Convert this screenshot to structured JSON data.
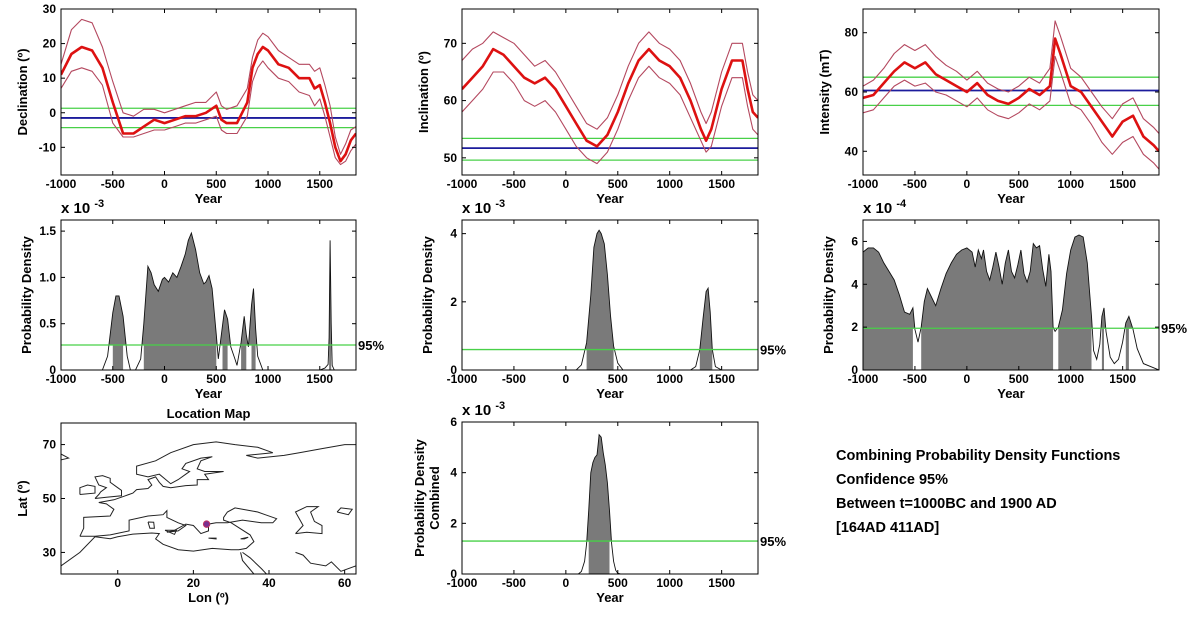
{
  "colors": {
    "mean_curve": "#dd1111",
    "error_envelope": "#b4485f",
    "reference_value": "#1c1c9c",
    "reference_bounds": "#48d048",
    "density_fill": "#7a7a7a",
    "location_marker": "#7a2f8f"
  },
  "summary": {
    "line1": "Combining Probability Density Functions",
    "line2": "Confidence 95%",
    "line3": "Between t=1000BC and 1900 AD",
    "line4": "[164AD 411AD]"
  },
  "chart_data": [
    {
      "type": "line",
      "panel": "declination-curve",
      "xlabel": "Year",
      "ylabel": "Declination (º)",
      "xlim": [
        -1000,
        1850
      ],
      "ylim": [
        -18,
        30
      ],
      "xticks": [
        -1000,
        -500,
        0,
        500,
        1000,
        1500
      ],
      "yticks": [
        -10,
        0,
        10,
        20,
        30
      ],
      "grid": false,
      "reference_line": -1.5,
      "reference_bounds": [
        -4.3,
        1.3
      ],
      "x": [
        -1000,
        -900,
        -800,
        -700,
        -600,
        -500,
        -400,
        -300,
        -200,
        -100,
        0,
        100,
        200,
        300,
        400,
        500,
        550,
        600,
        700,
        800,
        850,
        900,
        950,
        1000,
        1100,
        1200,
        1300,
        1400,
        1450,
        1500,
        1550,
        1600,
        1650,
        1700,
        1750,
        1800,
        1850
      ],
      "series": [
        {
          "role": "mean",
          "values": [
            11,
            17,
            19,
            18,
            13,
            3,
            -6,
            -6,
            -4,
            -2,
            -3,
            -2,
            -1,
            -1,
            0,
            2,
            -2,
            -3,
            -3,
            3,
            13,
            17,
            19,
            18,
            14,
            13,
            10,
            10,
            7,
            8,
            3,
            -3,
            -10,
            -14,
            -12,
            -8,
            -6
          ]
        },
        {
          "role": "upper",
          "values": [
            14,
            24,
            27,
            26,
            19,
            9,
            0,
            -1,
            1,
            1,
            0,
            1,
            2,
            3,
            3,
            6,
            2,
            1,
            2,
            7,
            16,
            21,
            23,
            22,
            18,
            16,
            14,
            14,
            12,
            13,
            8,
            2,
            -7,
            -12,
            -9,
            -5,
            -4
          ]
        },
        {
          "role": "lower",
          "values": [
            7,
            12,
            13,
            12,
            8,
            -3,
            -7,
            -7,
            -6,
            -5,
            -5,
            -4,
            -3,
            -3,
            -2,
            -1,
            -5,
            -6,
            -6,
            -1,
            9,
            13,
            15,
            13,
            10,
            9,
            6,
            5,
            2,
            4,
            -1,
            -7,
            -13,
            -15,
            -14,
            -11,
            -9
          ]
        }
      ]
    },
    {
      "type": "line",
      "panel": "inclination-curve",
      "xlabel": "Year",
      "ylabel": "Inclination (º)",
      "xlim": [
        -1000,
        1850
      ],
      "ylim": [
        47,
        76
      ],
      "xticks": [
        -1000,
        -500,
        0,
        500,
        1000,
        1500
      ],
      "yticks": [
        50,
        60,
        70
      ],
      "grid": false,
      "reference_line": 51.7,
      "reference_bounds": [
        49.6,
        53.4
      ],
      "x": [
        -1000,
        -900,
        -800,
        -700,
        -600,
        -500,
        -400,
        -300,
        -200,
        -100,
        0,
        100,
        200,
        300,
        400,
        500,
        600,
        700,
        800,
        900,
        1000,
        1100,
        1200,
        1300,
        1350,
        1400,
        1500,
        1600,
        1700,
        1750,
        1800,
        1850
      ],
      "series": [
        {
          "role": "mean",
          "values": [
            62,
            64,
            66,
            69,
            68,
            66,
            64,
            63,
            64,
            62,
            59,
            56,
            53,
            52,
            54,
            58,
            63,
            67,
            69,
            67,
            66,
            64,
            60,
            55,
            53,
            55,
            62,
            67,
            67,
            62,
            58,
            57
          ]
        },
        {
          "role": "upper",
          "values": [
            67,
            69,
            70,
            72,
            71,
            70,
            68,
            66,
            67,
            65,
            62,
            59,
            56,
            55,
            57,
            61,
            66,
            70,
            72,
            70,
            69,
            67,
            63,
            58,
            56,
            58,
            65,
            70,
            70,
            65,
            61,
            60
          ]
        },
        {
          "role": "lower",
          "values": [
            58,
            60,
            62,
            65,
            65,
            63,
            60,
            59,
            60,
            58,
            55,
            52,
            50,
            49,
            51,
            55,
            60,
            64,
            66,
            64,
            63,
            61,
            57,
            53,
            51,
            52,
            59,
            64,
            64,
            59,
            55,
            54
          ]
        }
      ]
    },
    {
      "type": "line",
      "panel": "intensity-curve",
      "xlabel": "Year",
      "ylabel": "Intensity (mT)",
      "xlim": [
        -1000,
        1850
      ],
      "ylim": [
        32,
        88
      ],
      "xticks": [
        -1000,
        -500,
        0,
        500,
        1000,
        1500
      ],
      "yticks": [
        40,
        60,
        80
      ],
      "grid": false,
      "reference_line": 60.5,
      "reference_bounds": [
        55.5,
        65
      ],
      "x": [
        -1000,
        -900,
        -800,
        -700,
        -600,
        -500,
        -400,
        -300,
        -200,
        -100,
        0,
        100,
        200,
        300,
        400,
        500,
        600,
        700,
        800,
        850,
        900,
        1000,
        1100,
        1200,
        1300,
        1400,
        1500,
        1600,
        1700,
        1800,
        1850
      ],
      "series": [
        {
          "role": "mean",
          "values": [
            58,
            59,
            63,
            67,
            70,
            68,
            70,
            66,
            64,
            62,
            60,
            63,
            59,
            57,
            56,
            58,
            61,
            59,
            62,
            78,
            73,
            62,
            60,
            55,
            50,
            45,
            50,
            52,
            45,
            42,
            40
          ]
        },
        {
          "role": "upper",
          "values": [
            62,
            64,
            68,
            73,
            76,
            74,
            76,
            72,
            69,
            67,
            64,
            67,
            63,
            61,
            60,
            62,
            65,
            63,
            68,
            84,
            79,
            68,
            65,
            60,
            55,
            51,
            56,
            58,
            51,
            48,
            46
          ]
        },
        {
          "role": "lower",
          "values": [
            53,
            54,
            58,
            62,
            64,
            62,
            63,
            60,
            59,
            57,
            55,
            58,
            54,
            52,
            51,
            53,
            56,
            54,
            57,
            72,
            67,
            56,
            54,
            49,
            43,
            39,
            43,
            45,
            39,
            36,
            34
          ]
        }
      ]
    },
    {
      "type": "area",
      "panel": "declination-density",
      "multiplier": "x 10",
      "multiplier_exponent": "-3",
      "xlabel": "Year",
      "ylabel": "Probability Density",
      "xlim": [
        -1000,
        1850
      ],
      "ylim": [
        0,
        1.62
      ],
      "xticks": [
        -1000,
        -500,
        0,
        500,
        1000,
        1500
      ],
      "yticks": [
        0,
        0.5,
        1,
        1.5
      ],
      "ytick_labels": [
        "0",
        "0.5",
        "1.0",
        "1.5"
      ],
      "threshold": 0.27,
      "threshold_label": "95%",
      "x": [
        -1000,
        -600,
        -550,
        -500,
        -470,
        -440,
        -400,
        -360,
        -330,
        -280,
        -230,
        -200,
        -160,
        -130,
        -100,
        -60,
        -20,
        0,
        40,
        80,
        120,
        160,
        200,
        230,
        260,
        300,
        340,
        380,
        400,
        430,
        460,
        500,
        520,
        560,
        580,
        610,
        640,
        680,
        700,
        740,
        770,
        790,
        810,
        840,
        860,
        880,
        900,
        950,
        1000,
        1500,
        1550,
        1580,
        1590,
        1600,
        1610,
        1620,
        1640,
        1660,
        1700,
        1850
      ],
      "values": [
        0,
        0,
        0.15,
        0.62,
        0.8,
        0.8,
        0.58,
        0.15,
        0,
        0,
        0.12,
        0.5,
        1.12,
        1.05,
        0.92,
        0.85,
        0.98,
        1.0,
        0.95,
        1.05,
        1.0,
        1.12,
        1.25,
        1.4,
        1.48,
        1.3,
        1.05,
        0.93,
        0.95,
        1.02,
        0.88,
        0.38,
        0.12,
        0.48,
        0.65,
        0.55,
        0.25,
        0.12,
        0.05,
        0.3,
        0.58,
        0.38,
        0.25,
        0.7,
        0.88,
        0.45,
        0.15,
        0,
        0,
        0,
        0.02,
        0.06,
        0.35,
        1.4,
        0.5,
        0.05,
        0,
        0,
        0,
        0
      ]
    },
    {
      "type": "area",
      "panel": "inclination-density",
      "multiplier": "x 10",
      "multiplier_exponent": "-3",
      "xlabel": "Year",
      "ylabel": "Probability Density",
      "xlim": [
        -1000,
        1850
      ],
      "ylim": [
        0,
        4.4
      ],
      "xticks": [
        -1000,
        -500,
        0,
        500,
        1000,
        1500
      ],
      "yticks": [
        0,
        2,
        4
      ],
      "ytick_labels": [
        "0",
        "2",
        "4"
      ],
      "threshold": 0.6,
      "threshold_label": "95%",
      "x": [
        -1000,
        100,
        150,
        200,
        240,
        270,
        300,
        320,
        340,
        370,
        400,
        430,
        460,
        500,
        550,
        1200,
        1250,
        1290,
        1320,
        1350,
        1370,
        1390,
        1410,
        1440,
        1500,
        1850
      ],
      "values": [
        0,
        0,
        0.15,
        0.8,
        2.2,
        3.6,
        4.0,
        4.1,
        4.0,
        3.7,
        2.8,
        1.6,
        0.7,
        0.2,
        0,
        0,
        0.1,
        0.6,
        1.5,
        2.3,
        2.4,
        1.7,
        0.6,
        0.1,
        0,
        0
      ]
    },
    {
      "type": "area",
      "panel": "intensity-density",
      "multiplier": "x 10",
      "multiplier_exponent": "-4",
      "xlabel": "Year",
      "ylabel": "Probability Density",
      "xlim": [
        -1000,
        1850
      ],
      "ylim": [
        0,
        7
      ],
      "xticks": [
        -1000,
        -500,
        0,
        500,
        1000,
        1500
      ],
      "yticks": [
        0,
        2,
        4,
        6
      ],
      "ytick_labels": [
        "0",
        "2",
        "4",
        "6"
      ],
      "threshold": 1.95,
      "threshold_label": "95%",
      "x": [
        -1000,
        -950,
        -900,
        -850,
        -800,
        -750,
        -700,
        -650,
        -600,
        -550,
        -520,
        -500,
        -470,
        -440,
        -410,
        -380,
        -350,
        -300,
        -250,
        -200,
        -150,
        -100,
        -50,
        0,
        50,
        80,
        110,
        140,
        160,
        190,
        220,
        250,
        280,
        310,
        340,
        370,
        400,
        430,
        460,
        490,
        520,
        550,
        580,
        610,
        640,
        670,
        700,
        730,
        760,
        790,
        810,
        830,
        850,
        880,
        920,
        960,
        1000,
        1040,
        1080,
        1120,
        1160,
        1200,
        1220,
        1250,
        1280,
        1300,
        1320,
        1340,
        1380,
        1420,
        1460,
        1500,
        1530,
        1560,
        1600,
        1640,
        1700,
        1850
      ],
      "values": [
        5.5,
        5.7,
        5.7,
        5.5,
        5.0,
        4.6,
        4.2,
        3.5,
        2.7,
        2.6,
        2.9,
        1.9,
        1.3,
        2.0,
        3.2,
        3.8,
        3.5,
        3.0,
        3.8,
        4.5,
        5.0,
        5.4,
        5.6,
        5.7,
        5.5,
        4.8,
        5.6,
        5.2,
        5.6,
        4.6,
        4.2,
        4.8,
        5.5,
        4.8,
        4.0,
        5.0,
        5.6,
        4.6,
        4.3,
        4.9,
        5.6,
        4.5,
        4.1,
        4.6,
        5.9,
        5.7,
        5.8,
        4.7,
        3.9,
        5.4,
        4.6,
        2.0,
        1.8,
        2.0,
        2.8,
        4.5,
        5.6,
        6.2,
        6.3,
        6.2,
        5.0,
        2.5,
        0.9,
        0.5,
        1.2,
        2.5,
        2.9,
        1.8,
        0.6,
        0.3,
        0.5,
        1.3,
        2.2,
        2.5,
        1.9,
        1.0,
        0.3,
        0
      ]
    },
    {
      "type": "area",
      "panel": "combined-density",
      "multiplier": "x 10",
      "multiplier_exponent": "-3",
      "xlabel": "Year",
      "ylabel": "Probability Density",
      "ylabel2": "Combined",
      "xlim": [
        -1000,
        1850
      ],
      "ylim": [
        0,
        6
      ],
      "xticks": [
        -1000,
        -500,
        0,
        500,
        1000,
        1500
      ],
      "yticks": [
        0,
        2,
        4,
        6
      ],
      "ytick_labels": [
        "0",
        "2",
        "4",
        "6"
      ],
      "threshold": 1.3,
      "threshold_label": "95%",
      "x": [
        -1000,
        120,
        150,
        180,
        200,
        220,
        240,
        260,
        280,
        300,
        310,
        320,
        340,
        360,
        380,
        400,
        420,
        440,
        460,
        480,
        500,
        530,
        1850
      ],
      "values": [
        0,
        0,
        0.1,
        0.5,
        1.2,
        2.5,
        4.0,
        4.4,
        4.6,
        4.7,
        5.1,
        5.5,
        5.4,
        4.8,
        4.3,
        3.6,
        2.5,
        1.2,
        0.5,
        0.15,
        0.03,
        0,
        0
      ]
    },
    {
      "type": "scatter",
      "panel": "location-map",
      "title": "Location Map",
      "xlabel": "Lon (º)",
      "ylabel": "Lat (º)",
      "xlim": [
        -15,
        63
      ],
      "ylim": [
        22,
        78
      ],
      "xticks": [
        0,
        20,
        40,
        60
      ],
      "yticks": [
        30,
        50,
        70
      ],
      "site": {
        "lon": 23.5,
        "lat": 40.5
      }
    }
  ]
}
